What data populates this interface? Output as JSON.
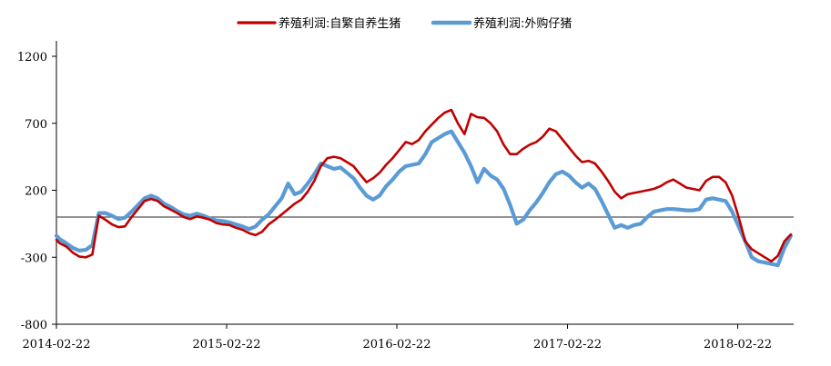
{
  "chart_data": {
    "type": "line",
    "title": "",
    "xlabel": "",
    "ylabel": "",
    "ylim": [
      -800,
      1300
    ],
    "yticks": [
      1200,
      700,
      200,
      -300,
      -800
    ],
    "xlim": [
      "2014-02-22",
      "2018-06-22"
    ],
    "xticks": [
      "2014-02-22",
      "2015-02-22",
      "2016-02-22",
      "2017-02-22",
      "2018-02-22"
    ],
    "zero_line": 0,
    "grid": false,
    "legend_position": "top-center",
    "series": [
      {
        "name": "养殖利润:自繁自养生猪",
        "color": "#c00000",
        "points": [
          [
            "2014-02-22",
            -170
          ],
          [
            "2014-03-01",
            -195
          ],
          [
            "2014-03-15",
            -220
          ],
          [
            "2014-03-29",
            -265
          ],
          [
            "2014-04-12",
            -295
          ],
          [
            "2014-04-26",
            -300
          ],
          [
            "2014-05-10",
            -280
          ],
          [
            "2014-05-24",
            10
          ],
          [
            "2014-06-07",
            -20
          ],
          [
            "2014-06-21",
            -55
          ],
          [
            "2014-07-05",
            -75
          ],
          [
            "2014-07-19",
            -70
          ],
          [
            "2014-08-02",
            0
          ],
          [
            "2014-08-16",
            60
          ],
          [
            "2014-08-30",
            120
          ],
          [
            "2014-09-13",
            135
          ],
          [
            "2014-09-27",
            120
          ],
          [
            "2014-10-11",
            80
          ],
          [
            "2014-10-25",
            55
          ],
          [
            "2014-11-08",
            30
          ],
          [
            "2014-11-22",
            0
          ],
          [
            "2014-12-06",
            -15
          ],
          [
            "2014-12-20",
            5
          ],
          [
            "2015-01-03",
            -5
          ],
          [
            "2015-01-17",
            -20
          ],
          [
            "2015-01-31",
            -45
          ],
          [
            "2015-02-14",
            -55
          ],
          [
            "2015-02-28",
            -60
          ],
          [
            "2015-03-14",
            -80
          ],
          [
            "2015-03-28",
            -95
          ],
          [
            "2015-04-11",
            -120
          ],
          [
            "2015-04-25",
            -135
          ],
          [
            "2015-05-09",
            -110
          ],
          [
            "2015-05-23",
            -55
          ],
          [
            "2015-06-06",
            -20
          ],
          [
            "2015-06-20",
            20
          ],
          [
            "2015-07-04",
            60
          ],
          [
            "2015-07-18",
            100
          ],
          [
            "2015-08-01",
            130
          ],
          [
            "2015-08-15",
            190
          ],
          [
            "2015-08-29",
            270
          ],
          [
            "2015-09-12",
            380
          ],
          [
            "2015-09-26",
            440
          ],
          [
            "2015-10-10",
            450
          ],
          [
            "2015-10-24",
            440
          ],
          [
            "2015-11-07",
            410
          ],
          [
            "2015-11-21",
            380
          ],
          [
            "2015-12-05",
            320
          ],
          [
            "2015-12-19",
            260
          ],
          [
            "2016-01-02",
            290
          ],
          [
            "2016-01-16",
            330
          ],
          [
            "2016-01-30",
            390
          ],
          [
            "2016-02-13",
            440
          ],
          [
            "2016-02-27",
            500
          ],
          [
            "2016-03-12",
            560
          ],
          [
            "2016-03-26",
            545
          ],
          [
            "2016-04-09",
            575
          ],
          [
            "2016-04-23",
            640
          ],
          [
            "2016-05-07",
            690
          ],
          [
            "2016-05-21",
            740
          ],
          [
            "2016-06-04",
            780
          ],
          [
            "2016-06-18",
            800
          ],
          [
            "2016-07-02",
            700
          ],
          [
            "2016-07-16",
            620
          ],
          [
            "2016-07-30",
            770
          ],
          [
            "2016-08-13",
            745
          ],
          [
            "2016-08-27",
            740
          ],
          [
            "2016-09-10",
            700
          ],
          [
            "2016-09-24",
            640
          ],
          [
            "2016-10-08",
            540
          ],
          [
            "2016-10-22",
            470
          ],
          [
            "2016-11-05",
            470
          ],
          [
            "2016-11-19",
            510
          ],
          [
            "2016-12-03",
            540
          ],
          [
            "2016-12-17",
            560
          ],
          [
            "2016-12-31",
            600
          ],
          [
            "2017-01-14",
            660
          ],
          [
            "2017-01-28",
            640
          ],
          [
            "2017-02-11",
            580
          ],
          [
            "2017-02-25",
            520
          ],
          [
            "2017-03-11",
            460
          ],
          [
            "2017-03-25",
            410
          ],
          [
            "2017-04-08",
            420
          ],
          [
            "2017-04-22",
            400
          ],
          [
            "2017-05-06",
            340
          ],
          [
            "2017-05-20",
            270
          ],
          [
            "2017-06-03",
            190
          ],
          [
            "2017-06-17",
            140
          ],
          [
            "2017-07-01",
            170
          ],
          [
            "2017-07-15",
            180
          ],
          [
            "2017-07-29",
            190
          ],
          [
            "2017-08-12",
            200
          ],
          [
            "2017-08-26",
            210
          ],
          [
            "2017-09-09",
            230
          ],
          [
            "2017-09-23",
            260
          ],
          [
            "2017-10-07",
            280
          ],
          [
            "2017-10-21",
            250
          ],
          [
            "2017-11-04",
            220
          ],
          [
            "2017-11-18",
            210
          ],
          [
            "2017-12-02",
            200
          ],
          [
            "2017-12-16",
            270
          ],
          [
            "2017-12-30",
            300
          ],
          [
            "2018-01-13",
            300
          ],
          [
            "2018-01-27",
            260
          ],
          [
            "2018-02-10",
            160
          ],
          [
            "2018-02-24",
            0
          ],
          [
            "2018-03-10",
            -180
          ],
          [
            "2018-03-24",
            -240
          ],
          [
            "2018-04-07",
            -270
          ],
          [
            "2018-04-21",
            -300
          ],
          [
            "2018-05-05",
            -330
          ],
          [
            "2018-05-19",
            -290
          ],
          [
            "2018-06-02",
            -180
          ],
          [
            "2018-06-16",
            -130
          ]
        ]
      },
      {
        "name": "养殖利润:外购仔猪",
        "color": "#5b9bd5",
        "points": [
          [
            "2014-02-22",
            -140
          ],
          [
            "2014-03-01",
            -165
          ],
          [
            "2014-03-15",
            -195
          ],
          [
            "2014-03-29",
            -230
          ],
          [
            "2014-04-12",
            -250
          ],
          [
            "2014-04-26",
            -245
          ],
          [
            "2014-05-10",
            -210
          ],
          [
            "2014-05-24",
            30
          ],
          [
            "2014-06-07",
            30
          ],
          [
            "2014-06-21",
            10
          ],
          [
            "2014-07-05",
            -15
          ],
          [
            "2014-07-19",
            -5
          ],
          [
            "2014-08-02",
            40
          ],
          [
            "2014-08-16",
            90
          ],
          [
            "2014-08-30",
            140
          ],
          [
            "2014-09-13",
            160
          ],
          [
            "2014-09-27",
            140
          ],
          [
            "2014-10-11",
            100
          ],
          [
            "2014-10-25",
            75
          ],
          [
            "2014-11-08",
            45
          ],
          [
            "2014-11-22",
            20
          ],
          [
            "2014-12-06",
            10
          ],
          [
            "2014-12-20",
            25
          ],
          [
            "2015-01-03",
            10
          ],
          [
            "2015-01-17",
            -10
          ],
          [
            "2015-01-31",
            -25
          ],
          [
            "2015-02-14",
            -30
          ],
          [
            "2015-02-28",
            -40
          ],
          [
            "2015-03-14",
            -55
          ],
          [
            "2015-03-28",
            -70
          ],
          [
            "2015-04-11",
            -90
          ],
          [
            "2015-04-25",
            -70
          ],
          [
            "2015-05-09",
            -20
          ],
          [
            "2015-05-23",
            20
          ],
          [
            "2015-06-06",
            80
          ],
          [
            "2015-06-20",
            140
          ],
          [
            "2015-07-04",
            250
          ],
          [
            "2015-07-18",
            170
          ],
          [
            "2015-08-01",
            190
          ],
          [
            "2015-08-15",
            250
          ],
          [
            "2015-08-29",
            320
          ],
          [
            "2015-09-12",
            400
          ],
          [
            "2015-09-26",
            380
          ],
          [
            "2015-10-10",
            360
          ],
          [
            "2015-10-24",
            370
          ],
          [
            "2015-11-07",
            330
          ],
          [
            "2015-11-21",
            290
          ],
          [
            "2015-12-05",
            220
          ],
          [
            "2015-12-19",
            160
          ],
          [
            "2016-01-02",
            130
          ],
          [
            "2016-01-16",
            160
          ],
          [
            "2016-01-30",
            230
          ],
          [
            "2016-02-13",
            280
          ],
          [
            "2016-02-27",
            340
          ],
          [
            "2016-03-12",
            380
          ],
          [
            "2016-03-26",
            390
          ],
          [
            "2016-04-09",
            400
          ],
          [
            "2016-04-23",
            470
          ],
          [
            "2016-05-07",
            560
          ],
          [
            "2016-05-21",
            590
          ],
          [
            "2016-06-04",
            620
          ],
          [
            "2016-06-18",
            640
          ],
          [
            "2016-07-02",
            560
          ],
          [
            "2016-07-16",
            480
          ],
          [
            "2016-07-30",
            380
          ],
          [
            "2016-08-13",
            260
          ],
          [
            "2016-08-27",
            360
          ],
          [
            "2016-09-10",
            310
          ],
          [
            "2016-09-24",
            280
          ],
          [
            "2016-10-08",
            210
          ],
          [
            "2016-10-22",
            90
          ],
          [
            "2016-11-05",
            -50
          ],
          [
            "2016-11-19",
            -20
          ],
          [
            "2016-12-03",
            50
          ],
          [
            "2016-12-17",
            110
          ],
          [
            "2016-12-31",
            180
          ],
          [
            "2017-01-14",
            260
          ],
          [
            "2017-01-28",
            320
          ],
          [
            "2017-02-11",
            340
          ],
          [
            "2017-02-25",
            310
          ],
          [
            "2017-03-11",
            260
          ],
          [
            "2017-03-25",
            220
          ],
          [
            "2017-04-08",
            250
          ],
          [
            "2017-04-22",
            210
          ],
          [
            "2017-05-06",
            120
          ],
          [
            "2017-05-20",
            20
          ],
          [
            "2017-06-03",
            -80
          ],
          [
            "2017-06-17",
            -60
          ],
          [
            "2017-07-01",
            -80
          ],
          [
            "2017-07-15",
            -60
          ],
          [
            "2017-07-29",
            -50
          ],
          [
            "2017-08-12",
            0
          ],
          [
            "2017-08-26",
            40
          ],
          [
            "2017-09-09",
            50
          ],
          [
            "2017-09-23",
            60
          ],
          [
            "2017-10-07",
            60
          ],
          [
            "2017-10-21",
            55
          ],
          [
            "2017-11-04",
            50
          ],
          [
            "2017-11-18",
            50
          ],
          [
            "2017-12-02",
            60
          ],
          [
            "2017-12-16",
            130
          ],
          [
            "2017-12-30",
            140
          ],
          [
            "2018-01-13",
            130
          ],
          [
            "2018-01-27",
            120
          ],
          [
            "2018-02-10",
            40
          ],
          [
            "2018-02-24",
            -70
          ],
          [
            "2018-03-10",
            -180
          ],
          [
            "2018-03-24",
            -300
          ],
          [
            "2018-04-07",
            -330
          ],
          [
            "2018-04-21",
            -340
          ],
          [
            "2018-05-05",
            -350
          ],
          [
            "2018-05-19",
            -360
          ],
          [
            "2018-06-02",
            -230
          ],
          [
            "2018-06-16",
            -140
          ]
        ]
      }
    ]
  }
}
